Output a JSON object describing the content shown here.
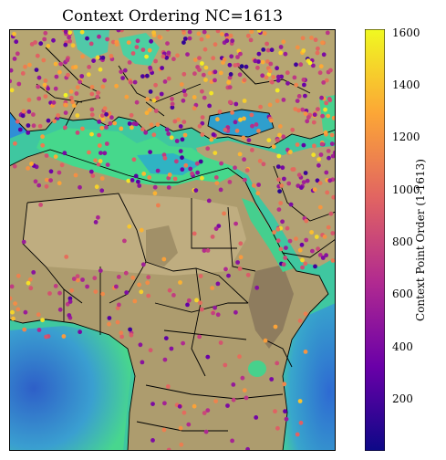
{
  "title": "Context Ordering NC=1613",
  "colorbar": {
    "label": "Context Point Order (1-1613)",
    "min": 1,
    "max": 1613,
    "ticks": [
      200,
      400,
      600,
      800,
      1000,
      1200,
      1400,
      1600
    ],
    "colormap": "plasma",
    "stops": [
      "#0d0887",
      "#6a00a8",
      "#b12a90",
      "#e16462",
      "#fca636",
      "#f0f921"
    ]
  },
  "map": {
    "region": "Europe, Mediterranean and Africa",
    "colors": {
      "land": "#b0a278",
      "land_dark": "#8a7a5a",
      "sea_shallow": "#49d98a",
      "sea_deep": "#2f7fd6",
      "sea_mid": "#35b3c8",
      "desert": "#c8b88a",
      "border": "#000000"
    }
  },
  "chart_data": {
    "type": "scatter",
    "title": "Context Ordering NC=1613",
    "colorbar_label": "Context Point Order (1-1613)",
    "n_points": 1613,
    "color_range": [
      1,
      1613
    ],
    "colorbar_ticks": [
      200,
      400,
      600,
      800,
      1000,
      1200,
      1400,
      1600
    ]
  }
}
